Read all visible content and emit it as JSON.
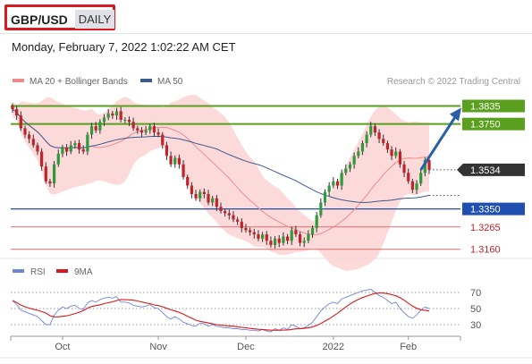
{
  "header": {
    "symbol": "GBP/USD",
    "period": "DAILY",
    "datetime": "Monday, February 7, 2022 1:02:22 AM CET"
  },
  "colors": {
    "bollinger_band": "#fbd3d3",
    "ma20": "#f08a8a",
    "ma50": "#3d5a8f",
    "candle_up": "#2e9a3a",
    "candle_down": "#c0232b",
    "resistance": "#5aa01e",
    "support": "#1f4fb0",
    "minor_support": "#e46a6a",
    "arrow": "#2a5ea8",
    "price_tag": "#333333",
    "rsi": "#6e86d6",
    "rsi_ma": "#d7191c"
  },
  "chart_data": [
    {
      "type": "candlestick",
      "legend": [
        {
          "name": "MA 20 + Bollinger Bands",
          "color": "#f08a8a"
        },
        {
          "name": "MA 50",
          "color": "#3d5a8f"
        }
      ],
      "credit": "Research © 2022 Trading Central",
      "ylim": [
        1.3125,
        1.3875
      ],
      "x_labels": [
        {
          "label": "Oct",
          "index": 12
        },
        {
          "label": "Nov",
          "index": 35
        },
        {
          "label": "Dec",
          "index": 56
        },
        {
          "label": "2022",
          "index": 77
        },
        {
          "label": "Feb",
          "index": 95
        }
      ],
      "levels": [
        {
          "value": 1.3835,
          "label": "1.3835",
          "kind": "resistance"
        },
        {
          "value": 1.375,
          "label": "1.3750",
          "kind": "resistance"
        },
        {
          "value": 1.3534,
          "label": "1.3534",
          "kind": "last"
        },
        {
          "value": 1.335,
          "label": "1.3350",
          "kind": "support"
        },
        {
          "value": 1.3265,
          "label": "1.3265",
          "kind": "minor"
        },
        {
          "value": 1.316,
          "label": "1.3160",
          "kind": "minor"
        }
      ],
      "forecast": {
        "from_index": 98,
        "from": 1.3534,
        "to_index": 106,
        "to": 1.3835
      },
      "close": [
        1.382,
        1.379,
        1.373,
        1.37,
        1.368,
        1.365,
        1.362,
        1.355,
        1.348,
        1.347,
        1.356,
        1.361,
        1.364,
        1.362,
        1.365,
        1.366,
        1.363,
        1.362,
        1.37,
        1.374,
        1.372,
        1.376,
        1.378,
        1.38,
        1.379,
        1.381,
        1.377,
        1.377,
        1.376,
        1.373,
        1.372,
        1.371,
        1.372,
        1.374,
        1.371,
        1.37,
        1.365,
        1.36,
        1.356,
        1.359,
        1.356,
        1.35,
        1.346,
        1.342,
        1.34,
        1.343,
        1.342,
        1.338,
        1.34,
        1.336,
        1.334,
        1.333,
        1.332,
        1.33,
        1.329,
        1.326,
        1.325,
        1.324,
        1.323,
        1.321,
        1.323,
        1.32,
        1.318,
        1.321,
        1.319,
        1.322,
        1.32,
        1.325,
        1.323,
        1.319,
        1.32,
        1.323,
        1.326,
        1.332,
        1.338,
        1.343,
        1.346,
        1.348,
        1.346,
        1.352,
        1.354,
        1.356,
        1.36,
        1.362,
        1.366,
        1.37,
        1.374,
        1.371,
        1.368,
        1.366,
        1.363,
        1.36,
        1.362,
        1.356,
        1.352,
        1.348,
        1.344,
        1.347,
        1.352,
        1.358,
        1.3534
      ]
    },
    {
      "type": "line",
      "legend": [
        {
          "name": "RSI",
          "color": "#6e86d6"
        },
        {
          "name": "9MA",
          "color": "#d7191c"
        }
      ],
      "ylim": [
        20,
        80
      ],
      "y_ticks": [
        70,
        50,
        30
      ],
      "rsi": [
        60,
        55,
        48,
        46,
        44,
        42,
        40,
        35,
        30,
        30,
        42,
        48,
        52,
        50,
        53,
        54,
        50,
        49,
        57,
        60,
        58,
        61,
        63,
        64,
        63,
        65,
        58,
        58,
        57,
        54,
        53,
        52,
        53,
        55,
        51,
        50,
        45,
        40,
        37,
        40,
        37,
        33,
        31,
        29,
        28,
        32,
        31,
        28,
        30,
        28,
        27,
        26,
        26,
        25,
        25,
        24,
        24,
        23,
        23,
        22,
        24,
        22,
        21,
        25,
        23,
        26,
        24,
        30,
        28,
        25,
        26,
        29,
        33,
        40,
        47,
        52,
        56,
        58,
        56,
        62,
        64,
        66,
        68,
        70,
        72,
        73,
        74,
        70,
        66,
        64,
        60,
        56,
        58,
        50,
        45,
        40,
        38,
        42,
        48,
        52,
        50
      ]
    }
  ]
}
